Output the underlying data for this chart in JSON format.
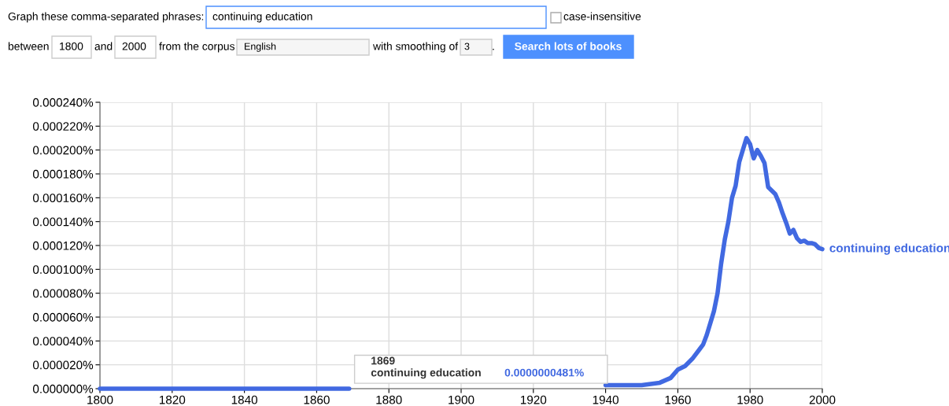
{
  "chart_data": {
    "type": "line",
    "x": [
      1800,
      1820,
      1840,
      1860,
      1869,
      1900,
      1940,
      1945,
      1950,
      1955,
      1958,
      1960,
      1962,
      1964,
      1966,
      1967,
      1968,
      1969,
      1970,
      1971,
      1972,
      1973,
      1974,
      1975,
      1976,
      1977,
      1978,
      1979,
      1980,
      1981,
      1982,
      1983,
      1984,
      1985,
      1986,
      1987,
      1988,
      1989,
      1990,
      1991,
      1992,
      1993,
      1994,
      1995,
      1996,
      1997,
      1998,
      1999,
      2000
    ],
    "series": [
      {
        "name": "continuing education",
        "color": "#4169e1",
        "values": [
          0,
          0,
          0,
          0,
          4.81e-08,
          null,
          3e-06,
          3e-06,
          3e-06,
          5e-06,
          9e-06,
          1.6e-05,
          1.9e-05,
          2.5e-05,
          3.3e-05,
          3.7e-05,
          4.5e-05,
          5.5e-05,
          6.5e-05,
          8e-05,
          0.000105,
          0.000125,
          0.00014,
          0.00016,
          0.00017,
          0.00019,
          0.0002,
          0.00021,
          0.000205,
          0.000193,
          0.0002,
          0.000195,
          0.000189,
          0.000169,
          0.000166,
          0.000163,
          0.000156,
          0.000147,
          0.000139,
          0.00013,
          0.000133,
          0.000126,
          0.000123,
          0.000124,
          0.000122,
          0.000122,
          0.000121,
          0.000118,
          0.000117
        ]
      }
    ],
    "xlim": [
      1800,
      2000
    ],
    "xticks": [
      1800,
      1820,
      1840,
      1860,
      1880,
      1900,
      1920,
      1940,
      1960,
      1980,
      2000
    ],
    "ylim": [
      0,
      0.00024
    ],
    "yticks": [
      {
        "value": 0,
        "label": "0.000000%"
      },
      {
        "value": 2e-05,
        "label": "0.000020%"
      },
      {
        "value": 4e-05,
        "label": "0.000040%"
      },
      {
        "value": 6e-05,
        "label": "0.000060%"
      },
      {
        "value": 8e-05,
        "label": "0.000080%"
      },
      {
        "value": 0.0001,
        "label": "0.000100%"
      },
      {
        "value": 0.00012,
        "label": "0.000120%"
      },
      {
        "value": 0.00014,
        "label": "0.000140%"
      },
      {
        "value": 0.00016,
        "label": "0.000160%"
      },
      {
        "value": 0.00018,
        "label": "0.000180%"
      },
      {
        "value": 0.0002,
        "label": "0.000200%"
      },
      {
        "value": 0.00022,
        "label": "0.000220%"
      },
      {
        "value": 0.00024,
        "label": "0.000240%"
      }
    ],
    "grid": true,
    "legend": false,
    "marker": "none",
    "line_style": "solid",
    "annotations": [
      "Graph these comma-separated phrases:",
      "continuing education",
      "case-insensitive",
      "between",
      "1800",
      "and",
      "2000",
      "from the corpus",
      "English",
      "with smoothing of",
      "3",
      ".",
      "Search lots of books",
      "1869",
      "continuing education",
      "0.0000000481%"
    ]
  }
}
